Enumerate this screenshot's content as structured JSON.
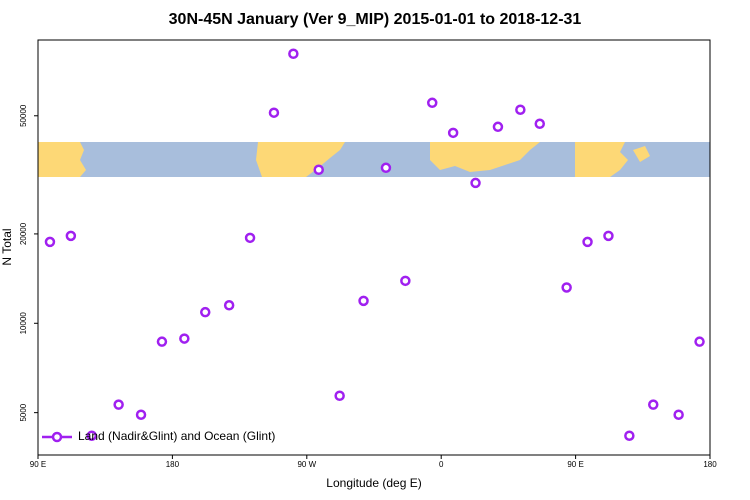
{
  "chart_data": {
    "type": "scatter",
    "title": "30N-45N January (Ver 9_MIP)   2015-01-01 to 2018-12-31",
    "xlabel": "Longitude (deg E)",
    "ylabel": "N Total",
    "xlim": [
      90,
      540
    ],
    "xticks": [
      {
        "value": 90,
        "label": "90 E"
      },
      180,
      {
        "value": 270,
        "label": "90 W"
      },
      {
        "value": 360,
        "label": "0"
      },
      {
        "value": 450,
        "label": "90 E"
      },
      {
        "value": 540,
        "label": "180"
      }
    ],
    "ylim": [
      3600,
      90000
    ],
    "yticks": [
      5000,
      10000,
      20000,
      50000
    ],
    "yscale": "log",
    "legend": "lower left",
    "series": [
      {
        "name": "Land (Nadir&Glint) and Ocean (Glint)",
        "color": "#a020f0",
        "x": [
          98,
          112,
          126,
          144,
          159,
          173,
          188,
          202,
          218,
          232,
          248,
          261,
          278,
          292,
          308,
          323,
          336,
          354,
          368,
          383,
          398,
          413,
          426,
          444,
          458,
          472,
          486,
          502,
          519,
          533
        ],
        "values": [
          18800,
          19700,
          4180,
          5320,
          4920,
          8670,
          8880,
          10900,
          11500,
          19400,
          51200,
          80900,
          32900,
          5700,
          11900,
          33400,
          13900,
          55300,
          43800,
          29700,
          45900,
          52400,
          47000,
          13200,
          18800,
          19700,
          4180,
          5320,
          4920,
          8670
        ]
      }
    ]
  }
}
